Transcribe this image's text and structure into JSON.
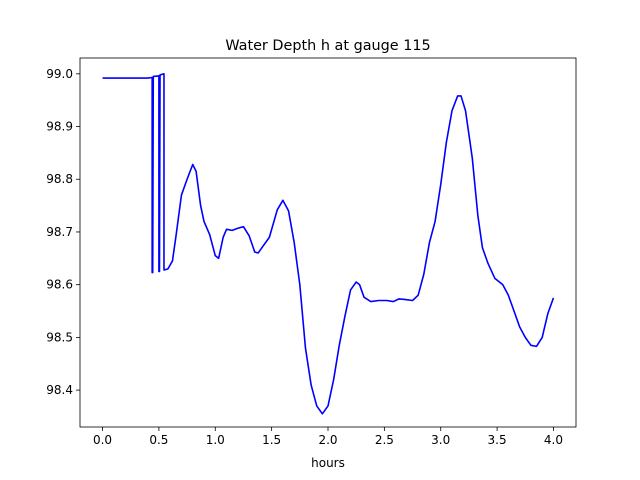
{
  "chart_data": {
    "type": "line",
    "title": "Water Depth h at gauge 115",
    "xlabel": "hours",
    "ylabel": "",
    "xlim": [
      -0.2,
      4.2
    ],
    "ylim": [
      98.33,
      99.03
    ],
    "xticks": [
      0.0,
      0.5,
      1.0,
      1.5,
      2.0,
      2.5,
      3.0,
      3.5,
      4.0
    ],
    "xtick_labels": [
      "0.0",
      "0.5",
      "1.0",
      "1.5",
      "2.0",
      "2.5",
      "3.0",
      "3.5",
      "4.0"
    ],
    "yticks": [
      98.4,
      98.5,
      98.6,
      98.7,
      98.8,
      98.9,
      99.0
    ],
    "ytick_labels": [
      "98.4",
      "98.5",
      "98.6",
      "98.7",
      "98.8",
      "98.9",
      "99.0"
    ],
    "grid": false,
    "series": [
      {
        "color": "#0000ff",
        "points": [
          [
            0.0,
            98.992
          ],
          [
            0.2,
            98.992
          ],
          [
            0.4,
            98.992
          ],
          [
            0.44,
            98.993
          ],
          [
            0.44,
            98.623
          ],
          [
            0.445,
            98.623
          ],
          [
            0.45,
            98.995
          ],
          [
            0.5,
            98.996
          ],
          [
            0.5,
            98.625
          ],
          [
            0.505,
            98.625
          ],
          [
            0.51,
            98.998
          ],
          [
            0.545,
            99.0
          ],
          [
            0.545,
            98.628
          ],
          [
            0.55,
            98.628
          ],
          [
            0.58,
            98.63
          ],
          [
            0.62,
            98.645
          ],
          [
            0.65,
            98.69
          ],
          [
            0.7,
            98.77
          ],
          [
            0.75,
            98.8
          ],
          [
            0.8,
            98.828
          ],
          [
            0.83,
            98.815
          ],
          [
            0.87,
            98.75
          ],
          [
            0.9,
            98.72
          ],
          [
            0.95,
            98.695
          ],
          [
            1.0,
            98.655
          ],
          [
            1.03,
            98.65
          ],
          [
            1.07,
            98.69
          ],
          [
            1.1,
            98.705
          ],
          [
            1.15,
            98.703
          ],
          [
            1.2,
            98.707
          ],
          [
            1.25,
            98.71
          ],
          [
            1.3,
            98.693
          ],
          [
            1.35,
            98.662
          ],
          [
            1.38,
            98.66
          ],
          [
            1.42,
            98.672
          ],
          [
            1.48,
            98.69
          ],
          [
            1.55,
            98.742
          ],
          [
            1.6,
            98.76
          ],
          [
            1.65,
            98.74
          ],
          [
            1.7,
            98.68
          ],
          [
            1.75,
            98.6
          ],
          [
            1.8,
            98.48
          ],
          [
            1.85,
            98.41
          ],
          [
            1.9,
            98.37
          ],
          [
            1.95,
            98.355
          ],
          [
            2.0,
            98.37
          ],
          [
            2.05,
            98.42
          ],
          [
            2.1,
            98.485
          ],
          [
            2.15,
            98.54
          ],
          [
            2.2,
            98.59
          ],
          [
            2.25,
            98.605
          ],
          [
            2.28,
            98.6
          ],
          [
            2.32,
            98.576
          ],
          [
            2.38,
            98.568
          ],
          [
            2.45,
            98.57
          ],
          [
            2.52,
            98.57
          ],
          [
            2.58,
            98.568
          ],
          [
            2.63,
            98.573
          ],
          [
            2.68,
            98.572
          ],
          [
            2.75,
            98.57
          ],
          [
            2.8,
            98.58
          ],
          [
            2.85,
            98.62
          ],
          [
            2.9,
            98.68
          ],
          [
            2.95,
            98.72
          ],
          [
            3.0,
            98.79
          ],
          [
            3.05,
            98.87
          ],
          [
            3.1,
            98.93
          ],
          [
            3.15,
            98.958
          ],
          [
            3.18,
            98.958
          ],
          [
            3.22,
            98.93
          ],
          [
            3.28,
            98.84
          ],
          [
            3.33,
            98.73
          ],
          [
            3.37,
            98.67
          ],
          [
            3.42,
            98.64
          ],
          [
            3.48,
            98.612
          ],
          [
            3.55,
            98.6
          ],
          [
            3.6,
            98.58
          ],
          [
            3.65,
            98.55
          ],
          [
            3.7,
            98.52
          ],
          [
            3.75,
            98.5
          ],
          [
            3.8,
            98.485
          ],
          [
            3.85,
            98.483
          ],
          [
            3.9,
            98.5
          ],
          [
            3.95,
            98.545
          ],
          [
            4.0,
            98.575
          ]
        ]
      }
    ]
  }
}
